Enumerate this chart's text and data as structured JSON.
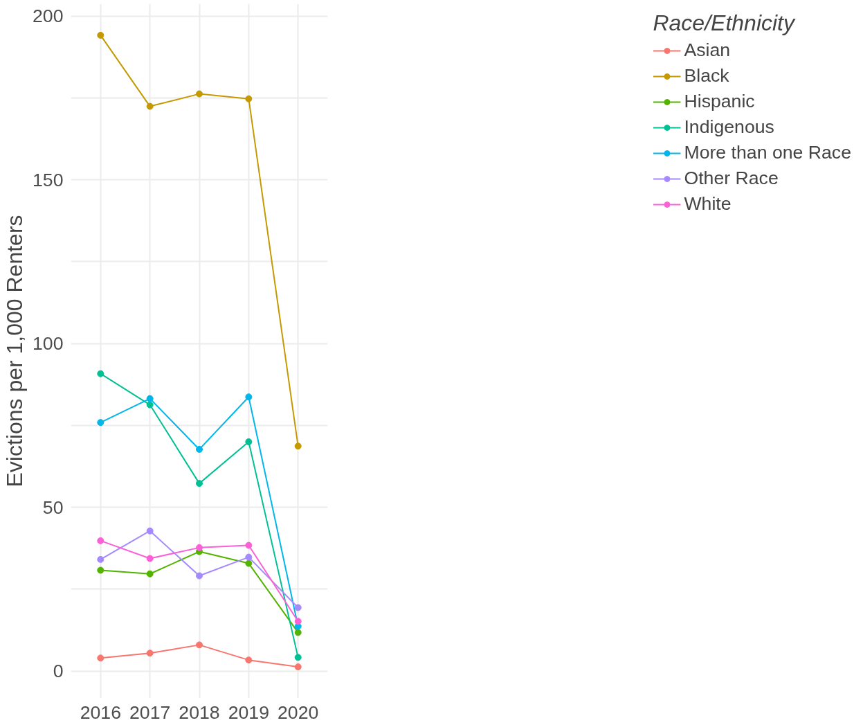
{
  "chart_data": {
    "type": "line",
    "ylabel": "Evictions per 1,000 Renters",
    "legend_title": "Race/Ethnicity",
    "legend": "right",
    "grid": true,
    "marker": "circle",
    "line_style": "solid",
    "x": [
      2016,
      2017,
      2018,
      2019,
      2020
    ],
    "xlim": [
      2015.4,
      2020.6
    ],
    "xticks": [
      2016,
      2017,
      2018,
      2019,
      2020
    ],
    "ylim": [
      -8.3,
      203.7
    ],
    "yticks": [
      0,
      {
        "value": 25,
        "label": null
      },
      50,
      {
        "value": 75,
        "label": null
      },
      100,
      {
        "value": 125,
        "label": null
      },
      150,
      {
        "value": 175,
        "label": null
      },
      200
    ],
    "series": [
      {
        "name": "Asian",
        "color": "#f8766d",
        "values": [
          4.0,
          5.5,
          8.0,
          3.4,
          1.3
        ]
      },
      {
        "name": "Black",
        "color": "#c49a00",
        "values": [
          194.1,
          172.4,
          176.2,
          174.7,
          68.7
        ]
      },
      {
        "name": "Hispanic",
        "color": "#53b400",
        "values": [
          30.8,
          29.7,
          36.5,
          32.9,
          11.8
        ]
      },
      {
        "name": "Indigenous",
        "color": "#00c094",
        "values": [
          90.8,
          81.3,
          57.3,
          70.0,
          4.2
        ]
      },
      {
        "name": "More than one Race",
        "color": "#00b6eb",
        "values": [
          75.9,
          83.2,
          67.7,
          83.7,
          13.7
        ]
      },
      {
        "name": "Other Race",
        "color": "#a58aff",
        "values": [
          34.1,
          42.8,
          29.1,
          34.8,
          19.4
        ]
      },
      {
        "name": "White",
        "color": "#fb61d7",
        "values": [
          39.8,
          34.4,
          37.7,
          38.4,
          15.2
        ]
      }
    ]
  }
}
